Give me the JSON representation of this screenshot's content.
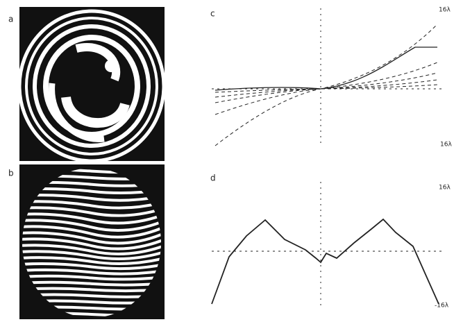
{
  "panels": [
    {
      "label": "a"
    },
    {
      "label": "b"
    },
    {
      "label": "c",
      "annotations": [
        "16λ",
        "16λ"
      ]
    },
    {
      "label": "d",
      "annotations": [
        "16λ",
        "-16λ"
      ]
    }
  ]
}
